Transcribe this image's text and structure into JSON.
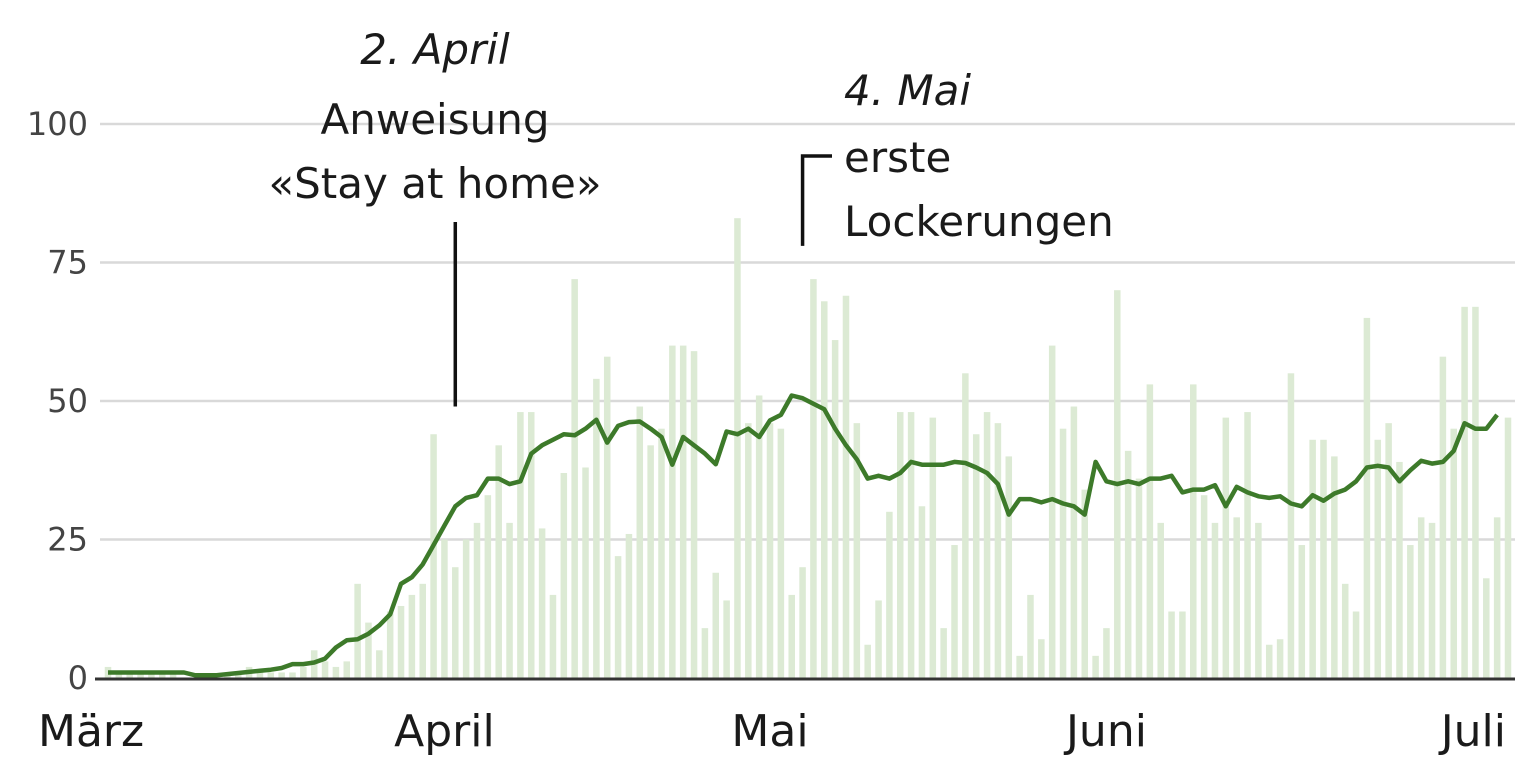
{
  "chart_data": {
    "type": "bar",
    "title": "",
    "xlabel": "",
    "ylabel": "",
    "ylim": [
      0,
      100
    ],
    "yticks": [
      0,
      25,
      50,
      75,
      100
    ],
    "grid": true,
    "x_tick_labels": [
      {
        "label": "März",
        "day": 0
      },
      {
        "label": "April",
        "day": 31
      },
      {
        "label": "Mai",
        "day": 61
      },
      {
        "label": "Juni",
        "day": 92
      },
      {
        "label": "Juli",
        "day": 122
      }
    ],
    "colors": {
      "bars": "#dcead4",
      "line": "#3d7a2a",
      "grid": "#d9d9d9",
      "axis": "#333333",
      "annotation": "#111111"
    },
    "series": [
      {
        "type": "bar",
        "values": [
          2,
          1,
          1,
          1,
          1,
          1,
          1,
          0,
          0,
          0,
          0,
          1,
          1,
          2,
          1,
          1,
          1,
          1,
          2,
          5,
          3,
          2,
          3,
          17,
          10,
          5,
          12,
          13,
          15,
          17,
          44,
          25,
          20,
          25,
          28,
          33,
          42,
          28,
          48,
          48,
          27,
          15,
          37,
          72,
          38,
          54,
          58,
          22,
          26,
          49,
          42,
          45,
          60,
          60,
          59,
          9,
          19,
          14,
          83,
          46,
          51,
          46,
          45,
          15,
          20,
          72,
          68,
          61,
          69,
          46,
          6,
          14,
          30,
          48,
          48,
          31,
          47,
          9,
          24,
          55,
          44,
          48,
          46,
          40,
          4,
          15,
          7,
          60,
          45,
          49,
          34,
          4,
          9,
          70,
          41,
          36,
          53,
          28,
          12,
          12,
          53,
          33,
          28,
          47,
          29,
          48,
          28,
          6,
          7,
          55,
          24,
          43,
          43,
          40,
          17,
          12,
          65,
          43,
          46,
          39,
          24,
          29,
          28,
          58,
          45,
          67,
          67,
          18,
          29,
          47
        ]
      },
      {
        "type": "line",
        "values": [
          1,
          1,
          1,
          1,
          1,
          1,
          1,
          1,
          0.5,
          0.5,
          0.5,
          0.7,
          0.9,
          1.1,
          1.3,
          1.5,
          1.8,
          2.5,
          2.5,
          2.8,
          3.5,
          5.5,
          6.8,
          7,
          8,
          9.5,
          11.5,
          17,
          18.2,
          20.5,
          24,
          27.5,
          31,
          32.5,
          33,
          36,
          36,
          35,
          35.5,
          40.5,
          42,
          43,
          44,
          43.8,
          45,
          46.6,
          42.5,
          45.5,
          46.2,
          46.3,
          45,
          43.5,
          38.5,
          43.5,
          42,
          40.5,
          38.6,
          44.5,
          44,
          45,
          43.5,
          46.5,
          47.5,
          51,
          50.5,
          49.5,
          48.5,
          45,
          42,
          39.5,
          36,
          36.5,
          36,
          37,
          39,
          38.5,
          38.5,
          38.5,
          39,
          38.8,
          38,
          37,
          35,
          29.5,
          32.3,
          32.3,
          31.7,
          32.3,
          31.5,
          31,
          29.5,
          39,
          35.5,
          35,
          35.5,
          35,
          36,
          36,
          36.5,
          33.5,
          34,
          34,
          34.8,
          31,
          34.5,
          33.5,
          32.8,
          32.5,
          32.8,
          31.5,
          31,
          33,
          32,
          33.3,
          34,
          35.5,
          38,
          38.3,
          38,
          35.5,
          37.5,
          39.2,
          38.7,
          39,
          41,
          46,
          45,
          45,
          47.5
        ]
      }
    ],
    "annotations": [
      {
        "date": "2. April",
        "lines": [
          "Anweisung",
          "«Stay at home»"
        ],
        "day": 32,
        "y": 49
      },
      {
        "date": "4. Mai",
        "lines": [
          "erste",
          "Lockerungen"
        ],
        "day": 64,
        "y": 78
      }
    ]
  }
}
